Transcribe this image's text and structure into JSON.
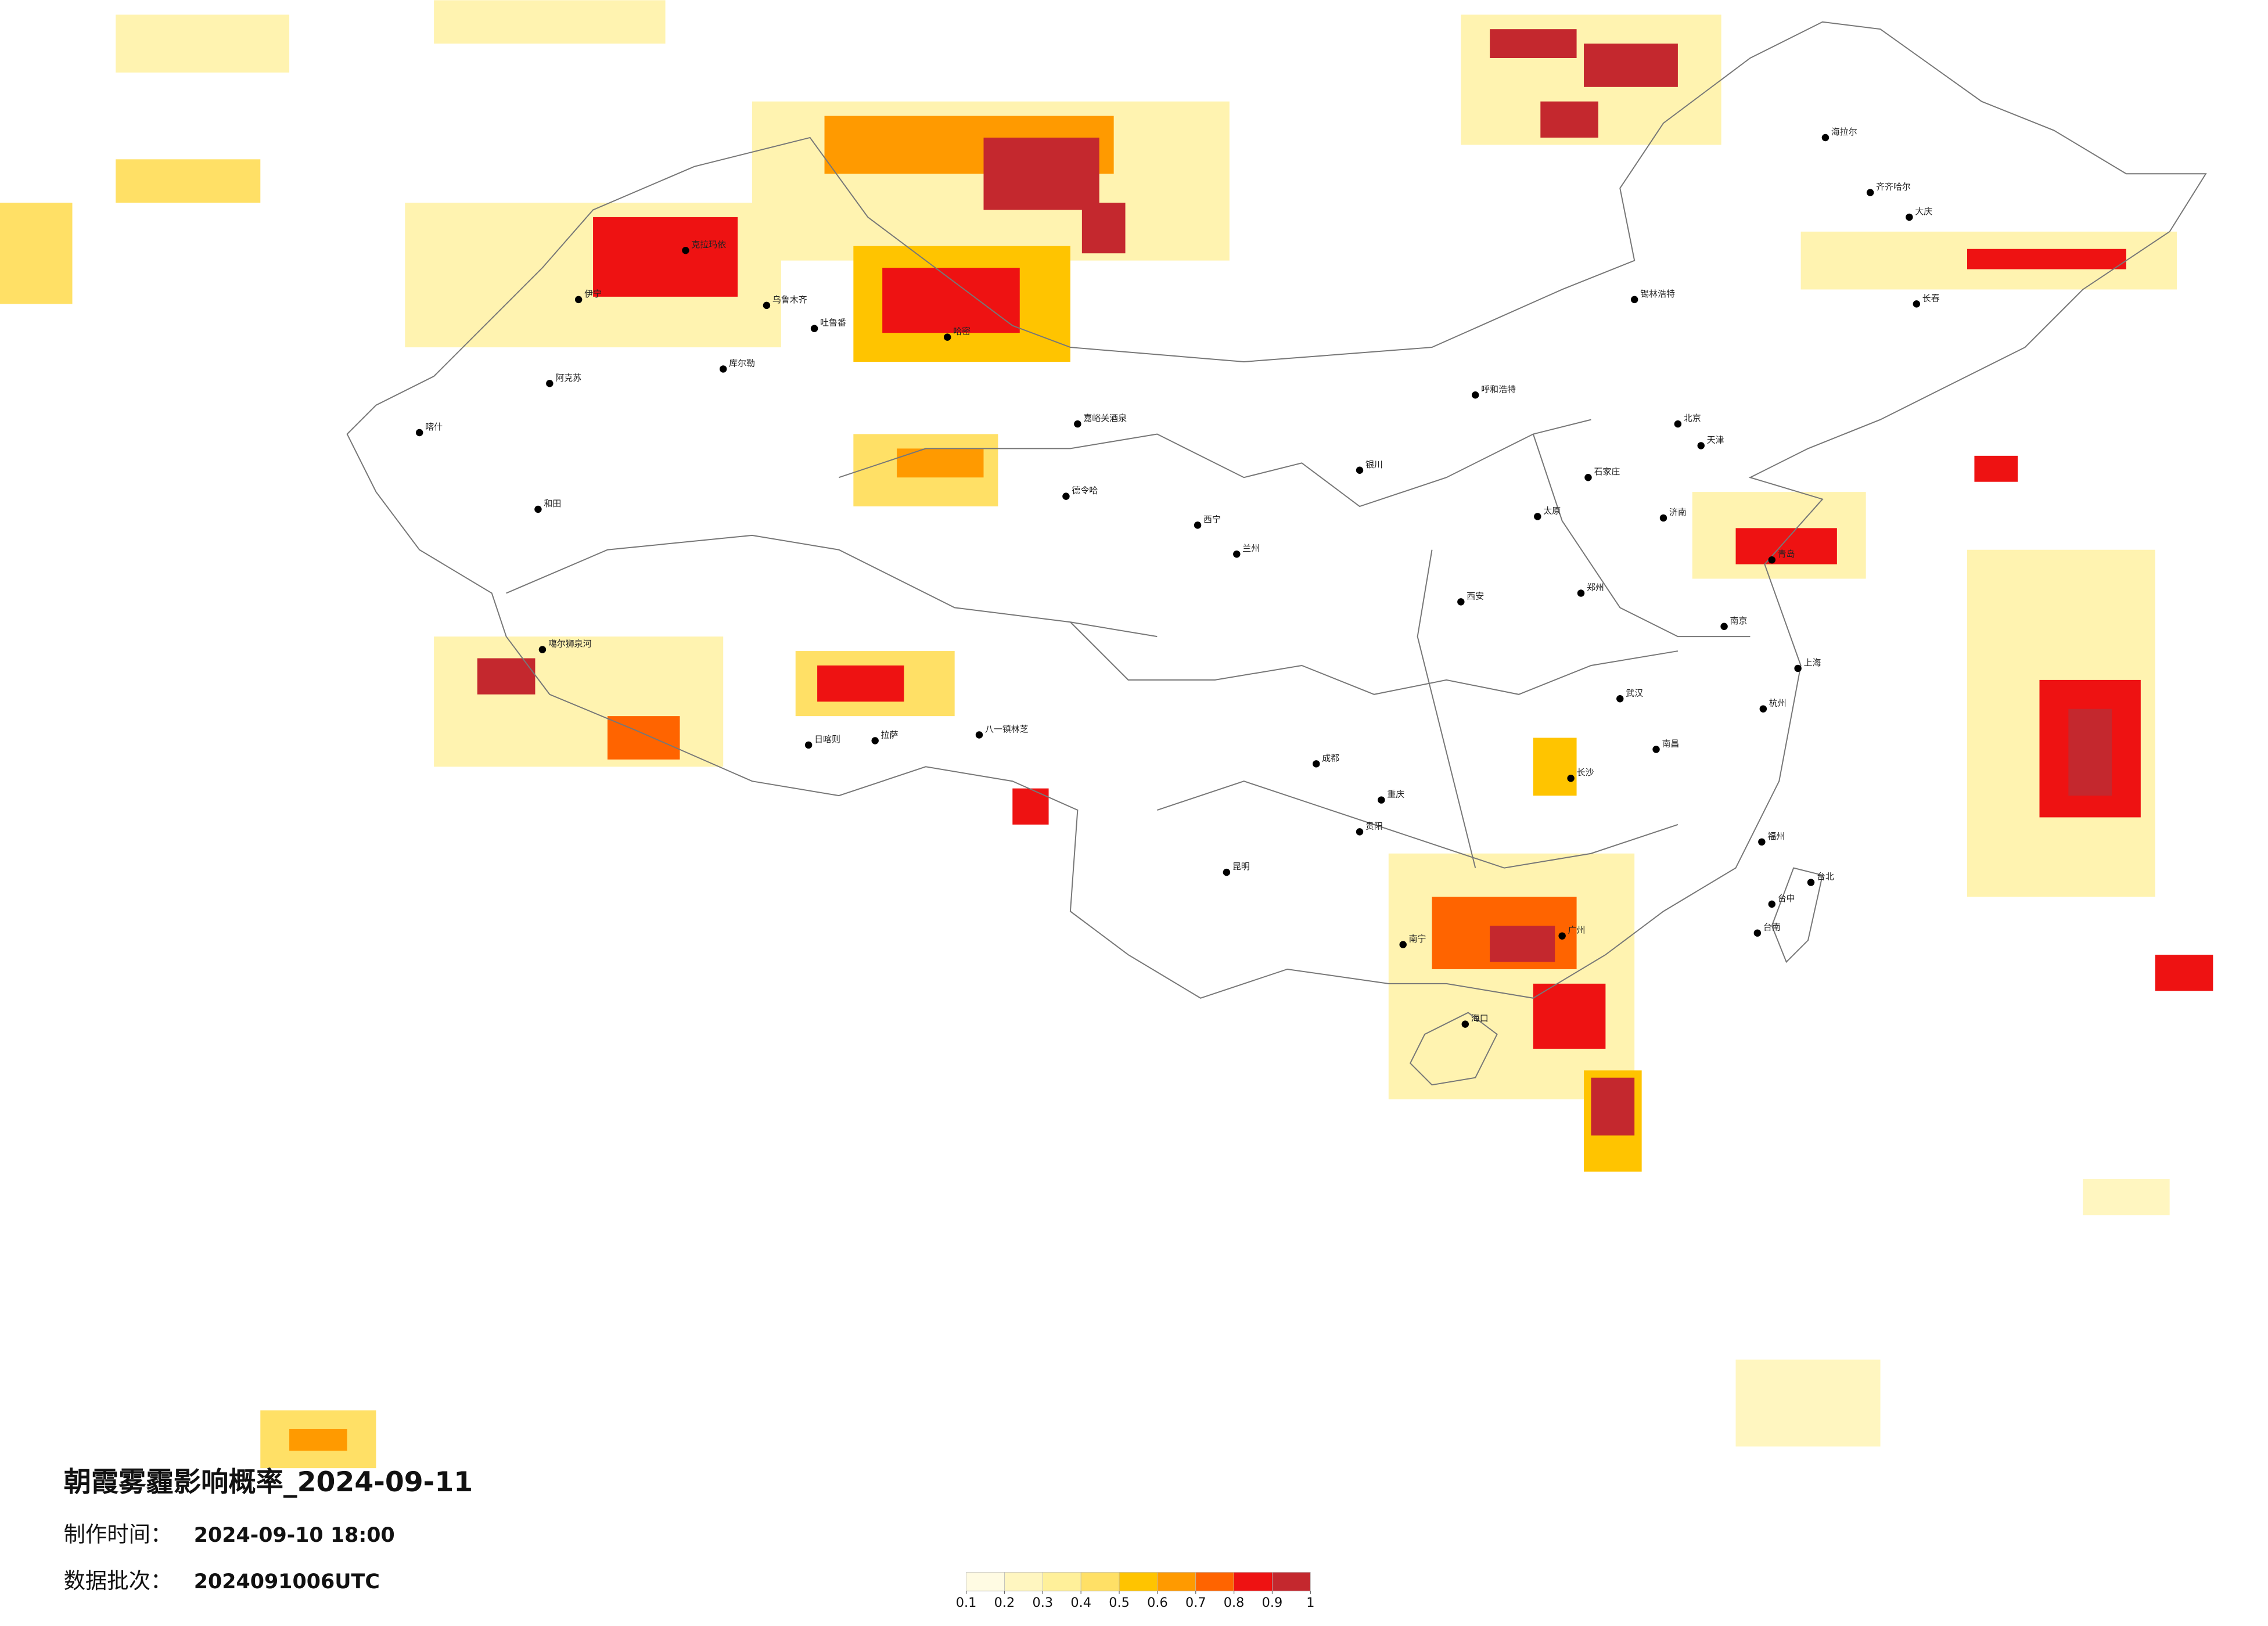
{
  "header": {
    "title": "朝霞雾霾影响概率_2024-09-11",
    "production_time_label": "制作时间：",
    "production_time": "2024-09-10 18:00",
    "batch_label": "数据批次：",
    "batch": "2024091006UTC"
  },
  "legend": {
    "ticks": [
      0.1,
      0.2,
      0.3,
      0.4,
      0.5,
      0.6,
      0.7,
      0.8,
      0.9,
      1
    ],
    "colors": [
      "#fffbe3",
      "#fff6c0",
      "#fff09a",
      "#ffe066",
      "#ffc400",
      "#ff9a00",
      "#ff6400",
      "#ee1212",
      "#c4282e"
    ]
  },
  "cities": [
    "克拉玛依",
    "乌鲁木齐",
    "伊宁",
    "阿克苏",
    "喀什",
    "和田",
    "库尔勒",
    "吐鲁番",
    "哈密",
    "嘉峪关酒泉",
    "德令哈",
    "拉萨",
    "日喀则",
    "噶尔狮泉河",
    "八一镇林芝",
    "海拉尔",
    "齐齐哈尔",
    "大庆",
    "长春",
    "锡林浩特",
    "呼和浩特",
    "北京",
    "天津",
    "石家庄",
    "太原",
    "济南",
    "青岛",
    "郑州",
    "西安",
    "兰州",
    "西宁",
    "银川",
    "成都",
    "重庆",
    "武汉",
    "南京",
    "上海",
    "杭州",
    "长沙",
    "南昌",
    "福州",
    "贵阳",
    "昆明",
    "南宁",
    "广州",
    "海口",
    "台北",
    "台中",
    "台南"
  ]
}
